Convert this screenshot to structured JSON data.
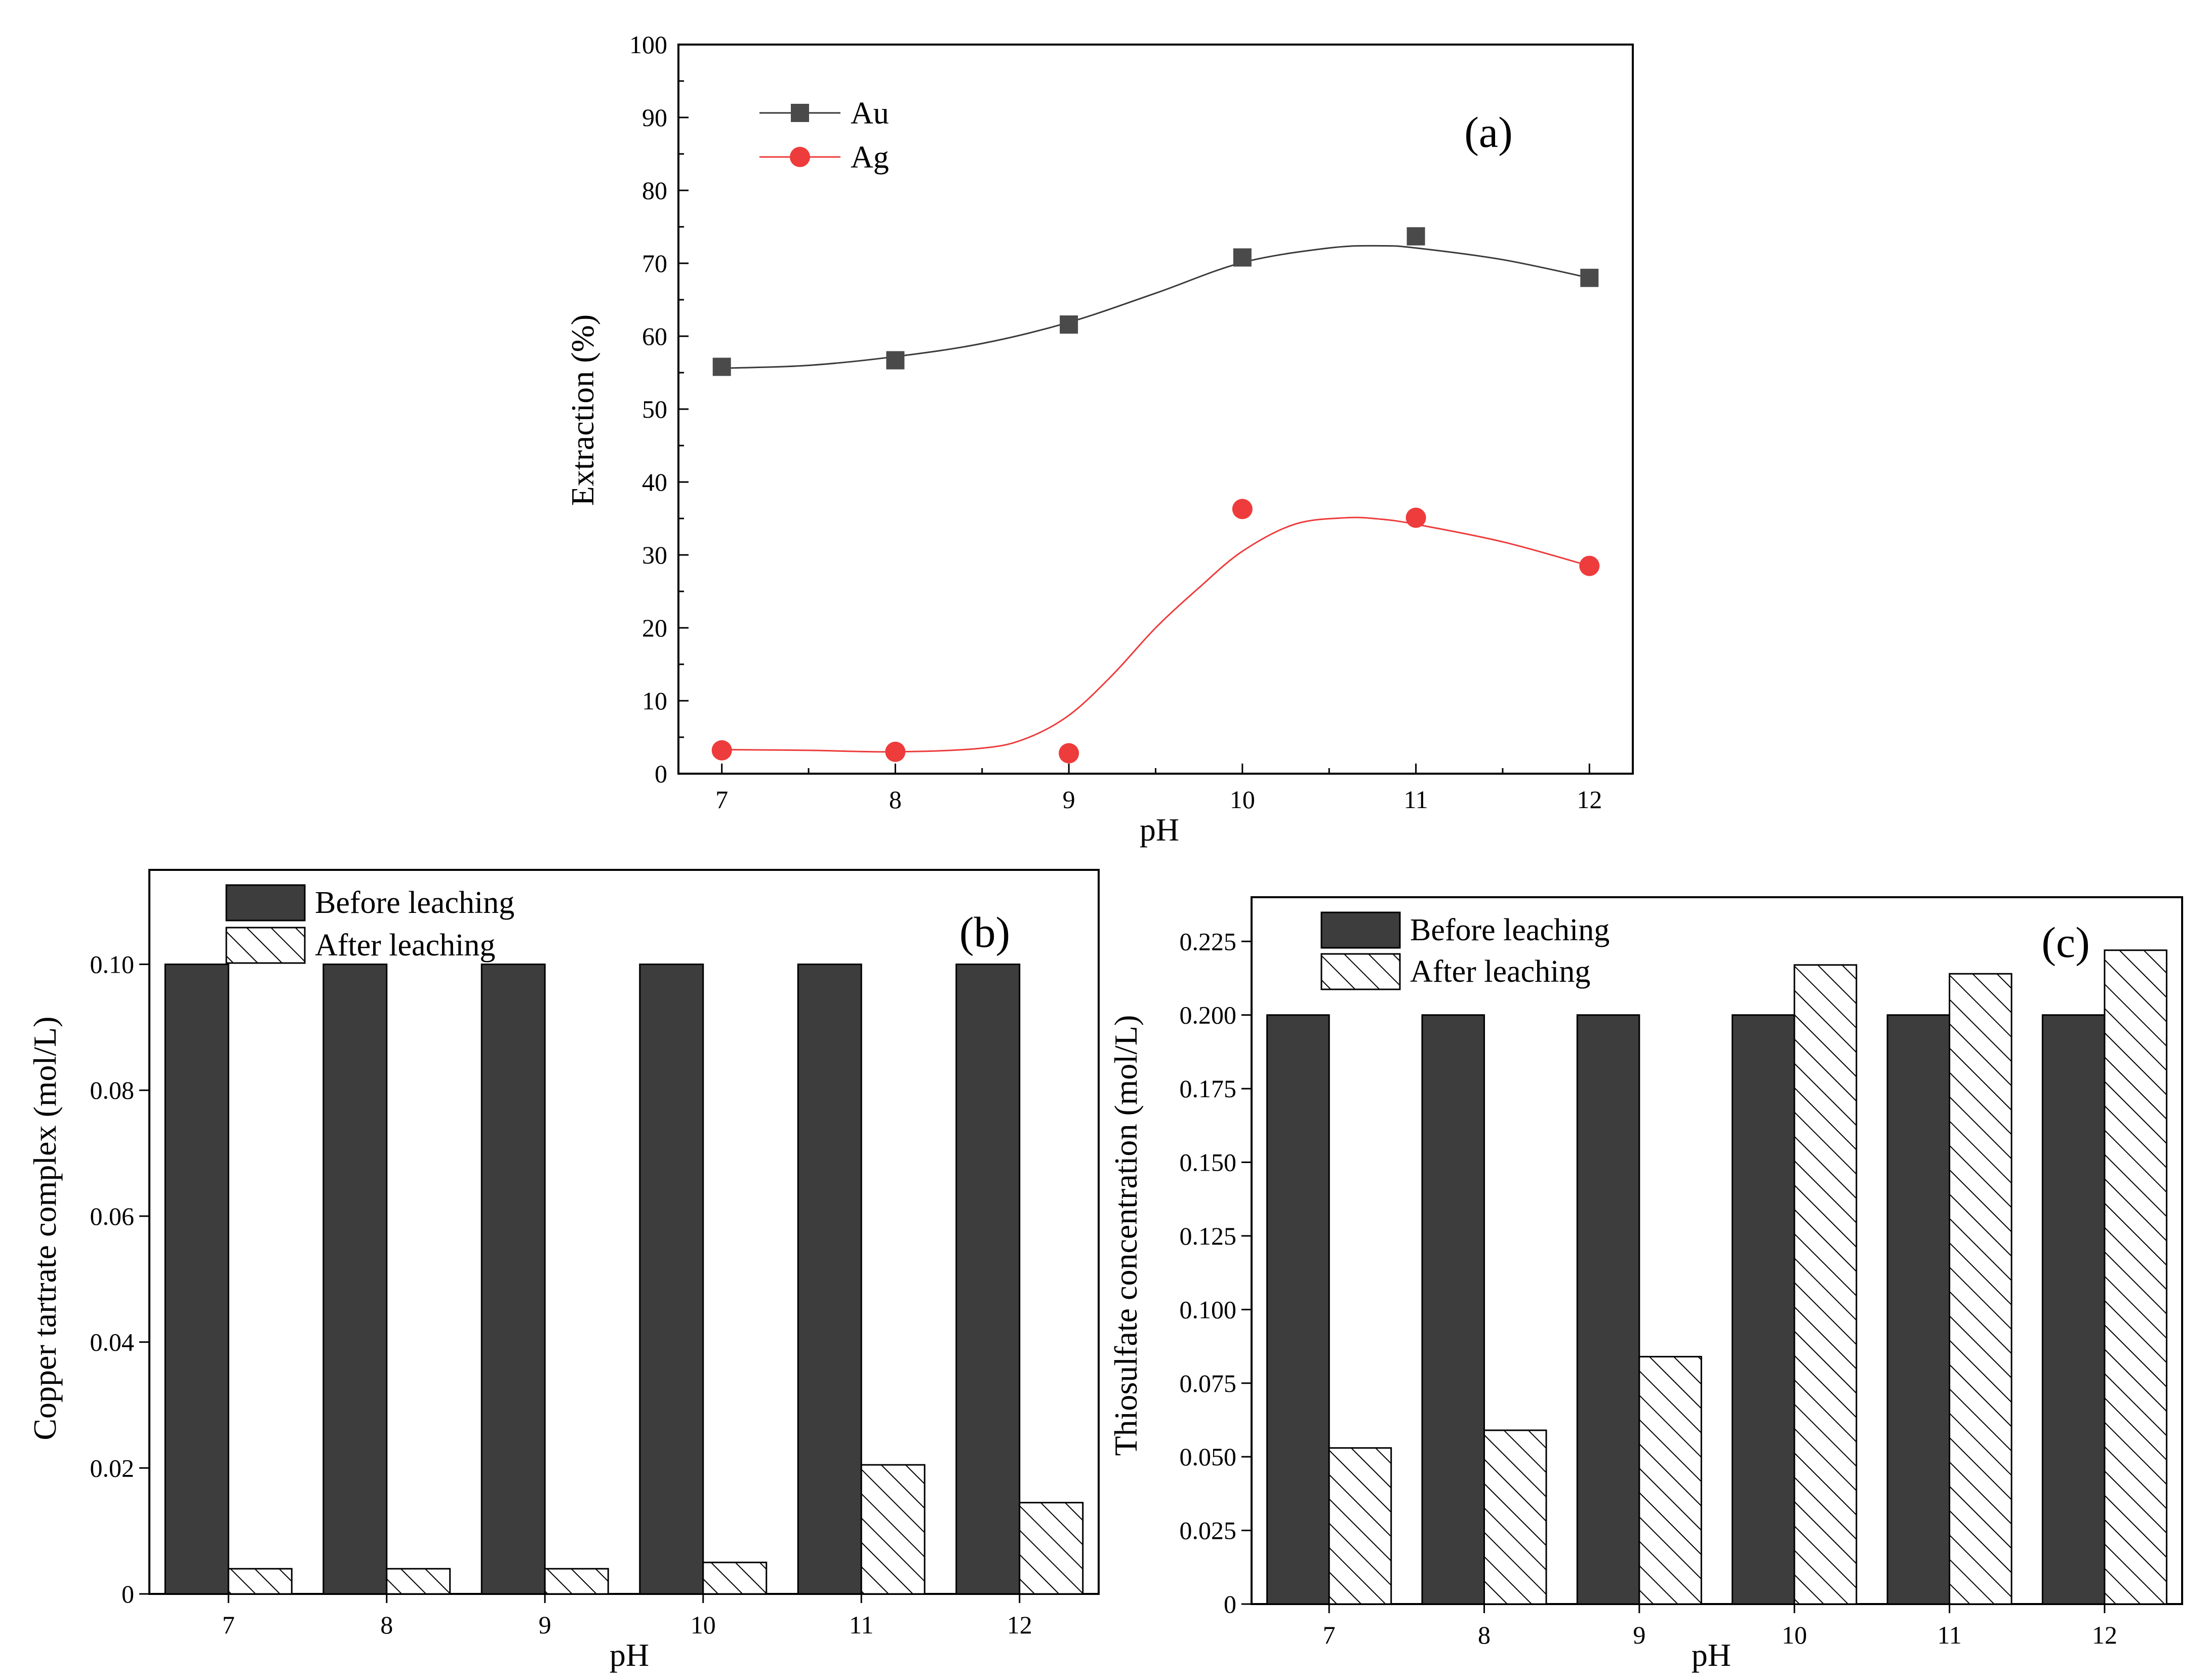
{
  "chart_data": [
    {
      "id": "a",
      "type": "line",
      "panel_label": "(a)",
      "xlabel": "pH",
      "ylabel": "Extraction (%)",
      "x": [
        7,
        8,
        9,
        10,
        11,
        12
      ],
      "xlim": [
        6.75,
        12.25
      ],
      "ylim": [
        0,
        100
      ],
      "yticks": [
        0,
        10,
        20,
        30,
        40,
        50,
        60,
        70,
        80,
        90,
        100
      ],
      "legend_position": "top-left",
      "series": [
        {
          "name": "Au",
          "marker": "square",
          "color": "#4a4a4a",
          "line_color": "#3a3a3a",
          "values": [
            55.8,
            56.7,
            61.6,
            70.8,
            73.7,
            68.0
          ],
          "fit_curve": [
            [
              7,
              55.6
            ],
            [
              7.5,
              56.0
            ],
            [
              8,
              57.2
            ],
            [
              8.5,
              59.0
            ],
            [
              9,
              61.9
            ],
            [
              9.5,
              65.9
            ],
            [
              10,
              70.1
            ],
            [
              10.5,
              72.1
            ],
            [
              10.8,
              72.4
            ],
            [
              11,
              72.1
            ],
            [
              11.5,
              70.5
            ],
            [
              12,
              68.0
            ]
          ]
        },
        {
          "name": "Ag",
          "marker": "circle",
          "color": "#ee3b3b",
          "line_color": "#ee3b3b",
          "values": [
            3.2,
            3.0,
            2.8,
            36.3,
            35.1,
            28.5
          ],
          "fit_curve": [
            [
              7,
              3.3
            ],
            [
              7.5,
              3.2
            ],
            [
              8,
              3.0
            ],
            [
              8.5,
              3.5
            ],
            [
              8.75,
              4.8
            ],
            [
              9,
              8.0
            ],
            [
              9.25,
              13.5
            ],
            [
              9.5,
              20.0
            ],
            [
              9.75,
              25.5
            ],
            [
              10,
              30.5
            ],
            [
              10.3,
              34.2
            ],
            [
              10.6,
              35.1
            ],
            [
              10.8,
              34.9
            ],
            [
              11,
              34.2
            ],
            [
              11.5,
              31.8
            ],
            [
              12,
              28.5
            ]
          ]
        }
      ]
    },
    {
      "id": "b",
      "type": "bar",
      "panel_label": "(b)",
      "xlabel": "pH",
      "ylabel": "Copper tartrate complex (mol/L)",
      "categories": [
        "7",
        "8",
        "9",
        "10",
        "11",
        "12"
      ],
      "ylim": [
        0,
        0.115
      ],
      "yticks": [
        0,
        0.02,
        0.04,
        0.06,
        0.08,
        0.1
      ],
      "ytick_labels": [
        "0",
        "0.02",
        "0.04",
        "0.06",
        "0.08",
        "0.10"
      ],
      "legend_position": "top-left",
      "series": [
        {
          "name": "Before leaching",
          "pattern": "solid",
          "values": [
            0.1,
            0.1,
            0.1,
            0.1,
            0.1,
            0.1
          ]
        },
        {
          "name": "After leaching",
          "pattern": "hatch",
          "values": [
            0.004,
            0.004,
            0.004,
            0.005,
            0.0205,
            0.0145
          ]
        }
      ]
    },
    {
      "id": "c",
      "type": "bar",
      "panel_label": "(c)",
      "xlabel": "pH",
      "ylabel": "Thiosulfate concentration (mol/L)",
      "categories": [
        "7",
        "8",
        "9",
        "10",
        "11",
        "12"
      ],
      "ylim": [
        0,
        0.24
      ],
      "yticks": [
        0,
        0.025,
        0.05,
        0.075,
        0.1,
        0.125,
        0.15,
        0.175,
        0.2,
        0.225
      ],
      "ytick_labels": [
        "0",
        "0.025",
        "0.050",
        "0.075",
        "0.100",
        "0.125",
        "0.150",
        "0.175",
        "0.200",
        "0.225"
      ],
      "legend_position": "top-left",
      "series": [
        {
          "name": "Before leaching",
          "pattern": "solid",
          "values": [
            0.2,
            0.2,
            0.2,
            0.2,
            0.2,
            0.2
          ]
        },
        {
          "name": "After leaching",
          "pattern": "hatch",
          "values": [
            0.053,
            0.059,
            0.084,
            0.217,
            0.214,
            0.222
          ]
        }
      ]
    }
  ],
  "style": {
    "bar_fill": "#3d3d3d",
    "axis_color": "#000000"
  }
}
